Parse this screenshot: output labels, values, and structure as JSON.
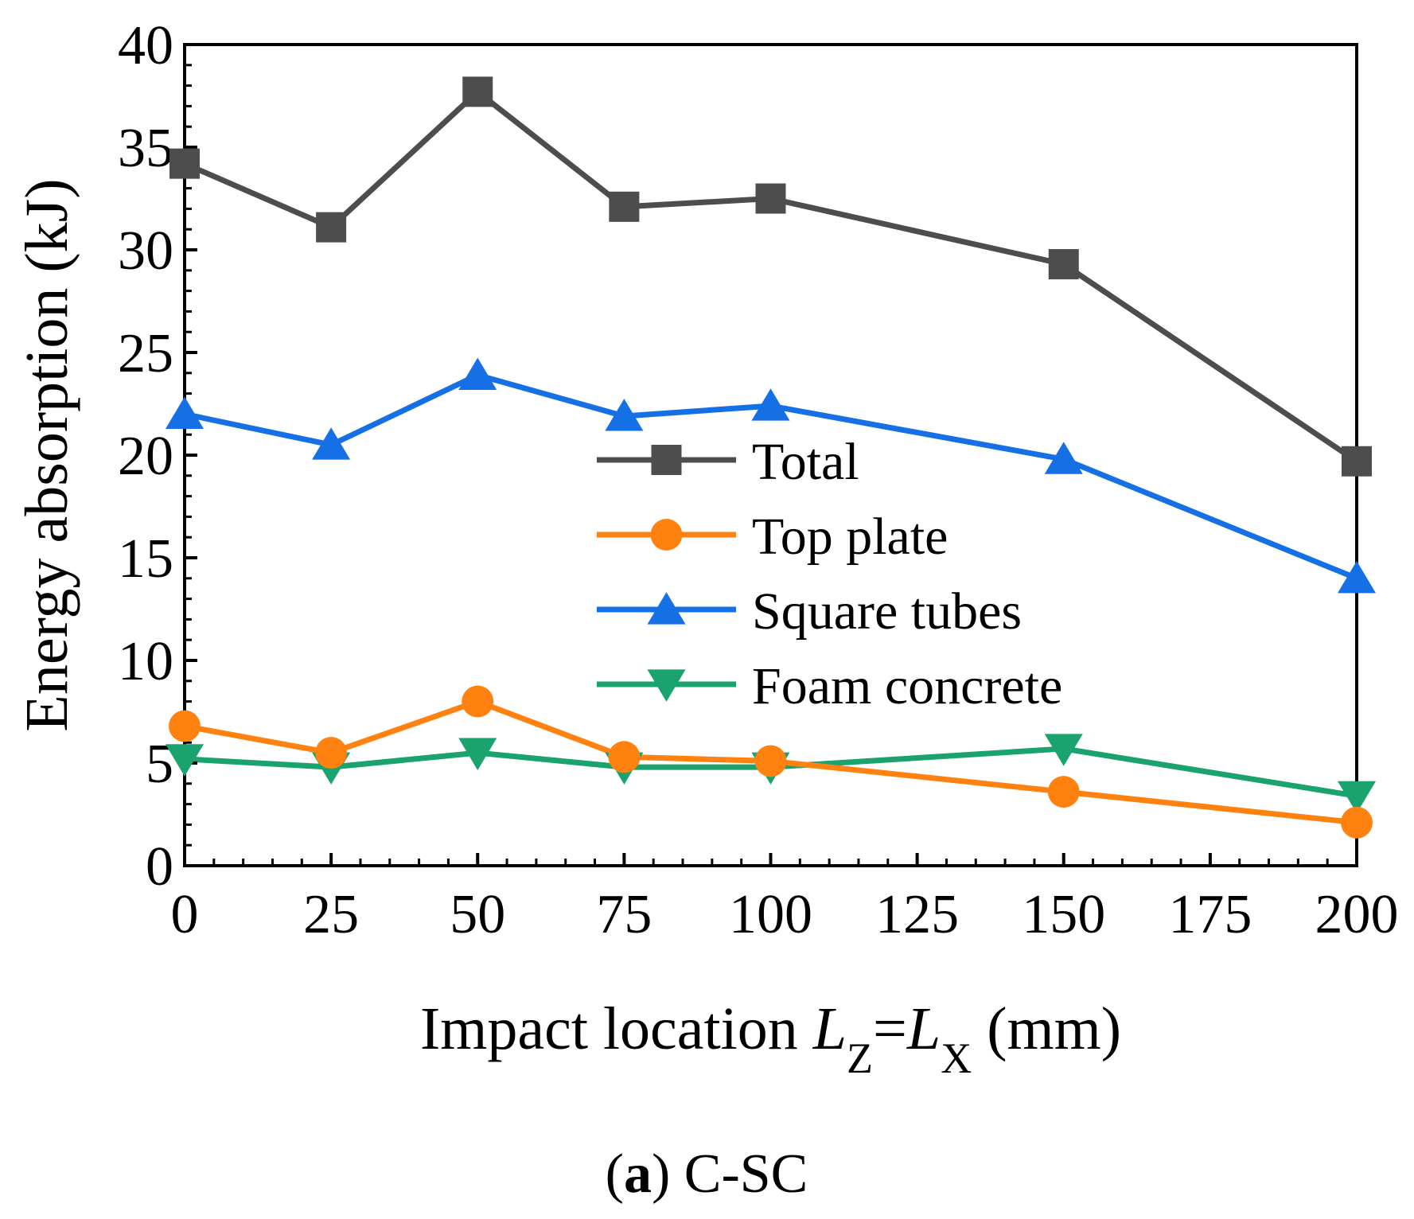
{
  "chart_data": {
    "type": "line",
    "title": "",
    "xlabel": {
      "prefix": "Impact location ",
      "var1": "L",
      "sub1": "Z",
      "equals": "=",
      "var2": "L",
      "sub2": "X",
      "suffix": " (mm)"
    },
    "ylabel": "Energy absorption (kJ)",
    "xlim": [
      0,
      200
    ],
    "ylim": [
      0,
      40
    ],
    "x": [
      0,
      25,
      50,
      75,
      100,
      150,
      200
    ],
    "x_ticks": [
      "0",
      "25",
      "50",
      "75",
      "100",
      "125",
      "150",
      "175",
      "200"
    ],
    "y_ticks": [
      "0",
      "5",
      "10",
      "15",
      "20",
      "25",
      "30",
      "35",
      "40"
    ],
    "grid": false,
    "legend_position": "center",
    "series": [
      {
        "name": "Total",
        "marker": "square",
        "color": "#4d4d4d",
        "values": [
          34.2,
          31.1,
          37.7,
          32.1,
          32.5,
          29.3,
          19.7
        ]
      },
      {
        "name": "Top plate",
        "marker": "circle",
        "color": "#ff8210",
        "values": [
          6.8,
          5.5,
          8.0,
          5.3,
          5.1,
          3.6,
          2.1
        ]
      },
      {
        "name": "Square tubes",
        "marker": "triangle-up",
        "color": "#1670e5",
        "values": [
          22.0,
          20.5,
          23.9,
          21.9,
          22.4,
          19.8,
          14.0
        ]
      },
      {
        "name": "Foam concrete",
        "marker": "triangle-down",
        "color": "#1aa36e",
        "values": [
          5.2,
          4.8,
          5.5,
          4.8,
          4.8,
          5.7,
          3.4
        ]
      }
    ]
  },
  "caption": {
    "letter": "a",
    "open": "(",
    "close": ")",
    "text": " C-SC"
  }
}
